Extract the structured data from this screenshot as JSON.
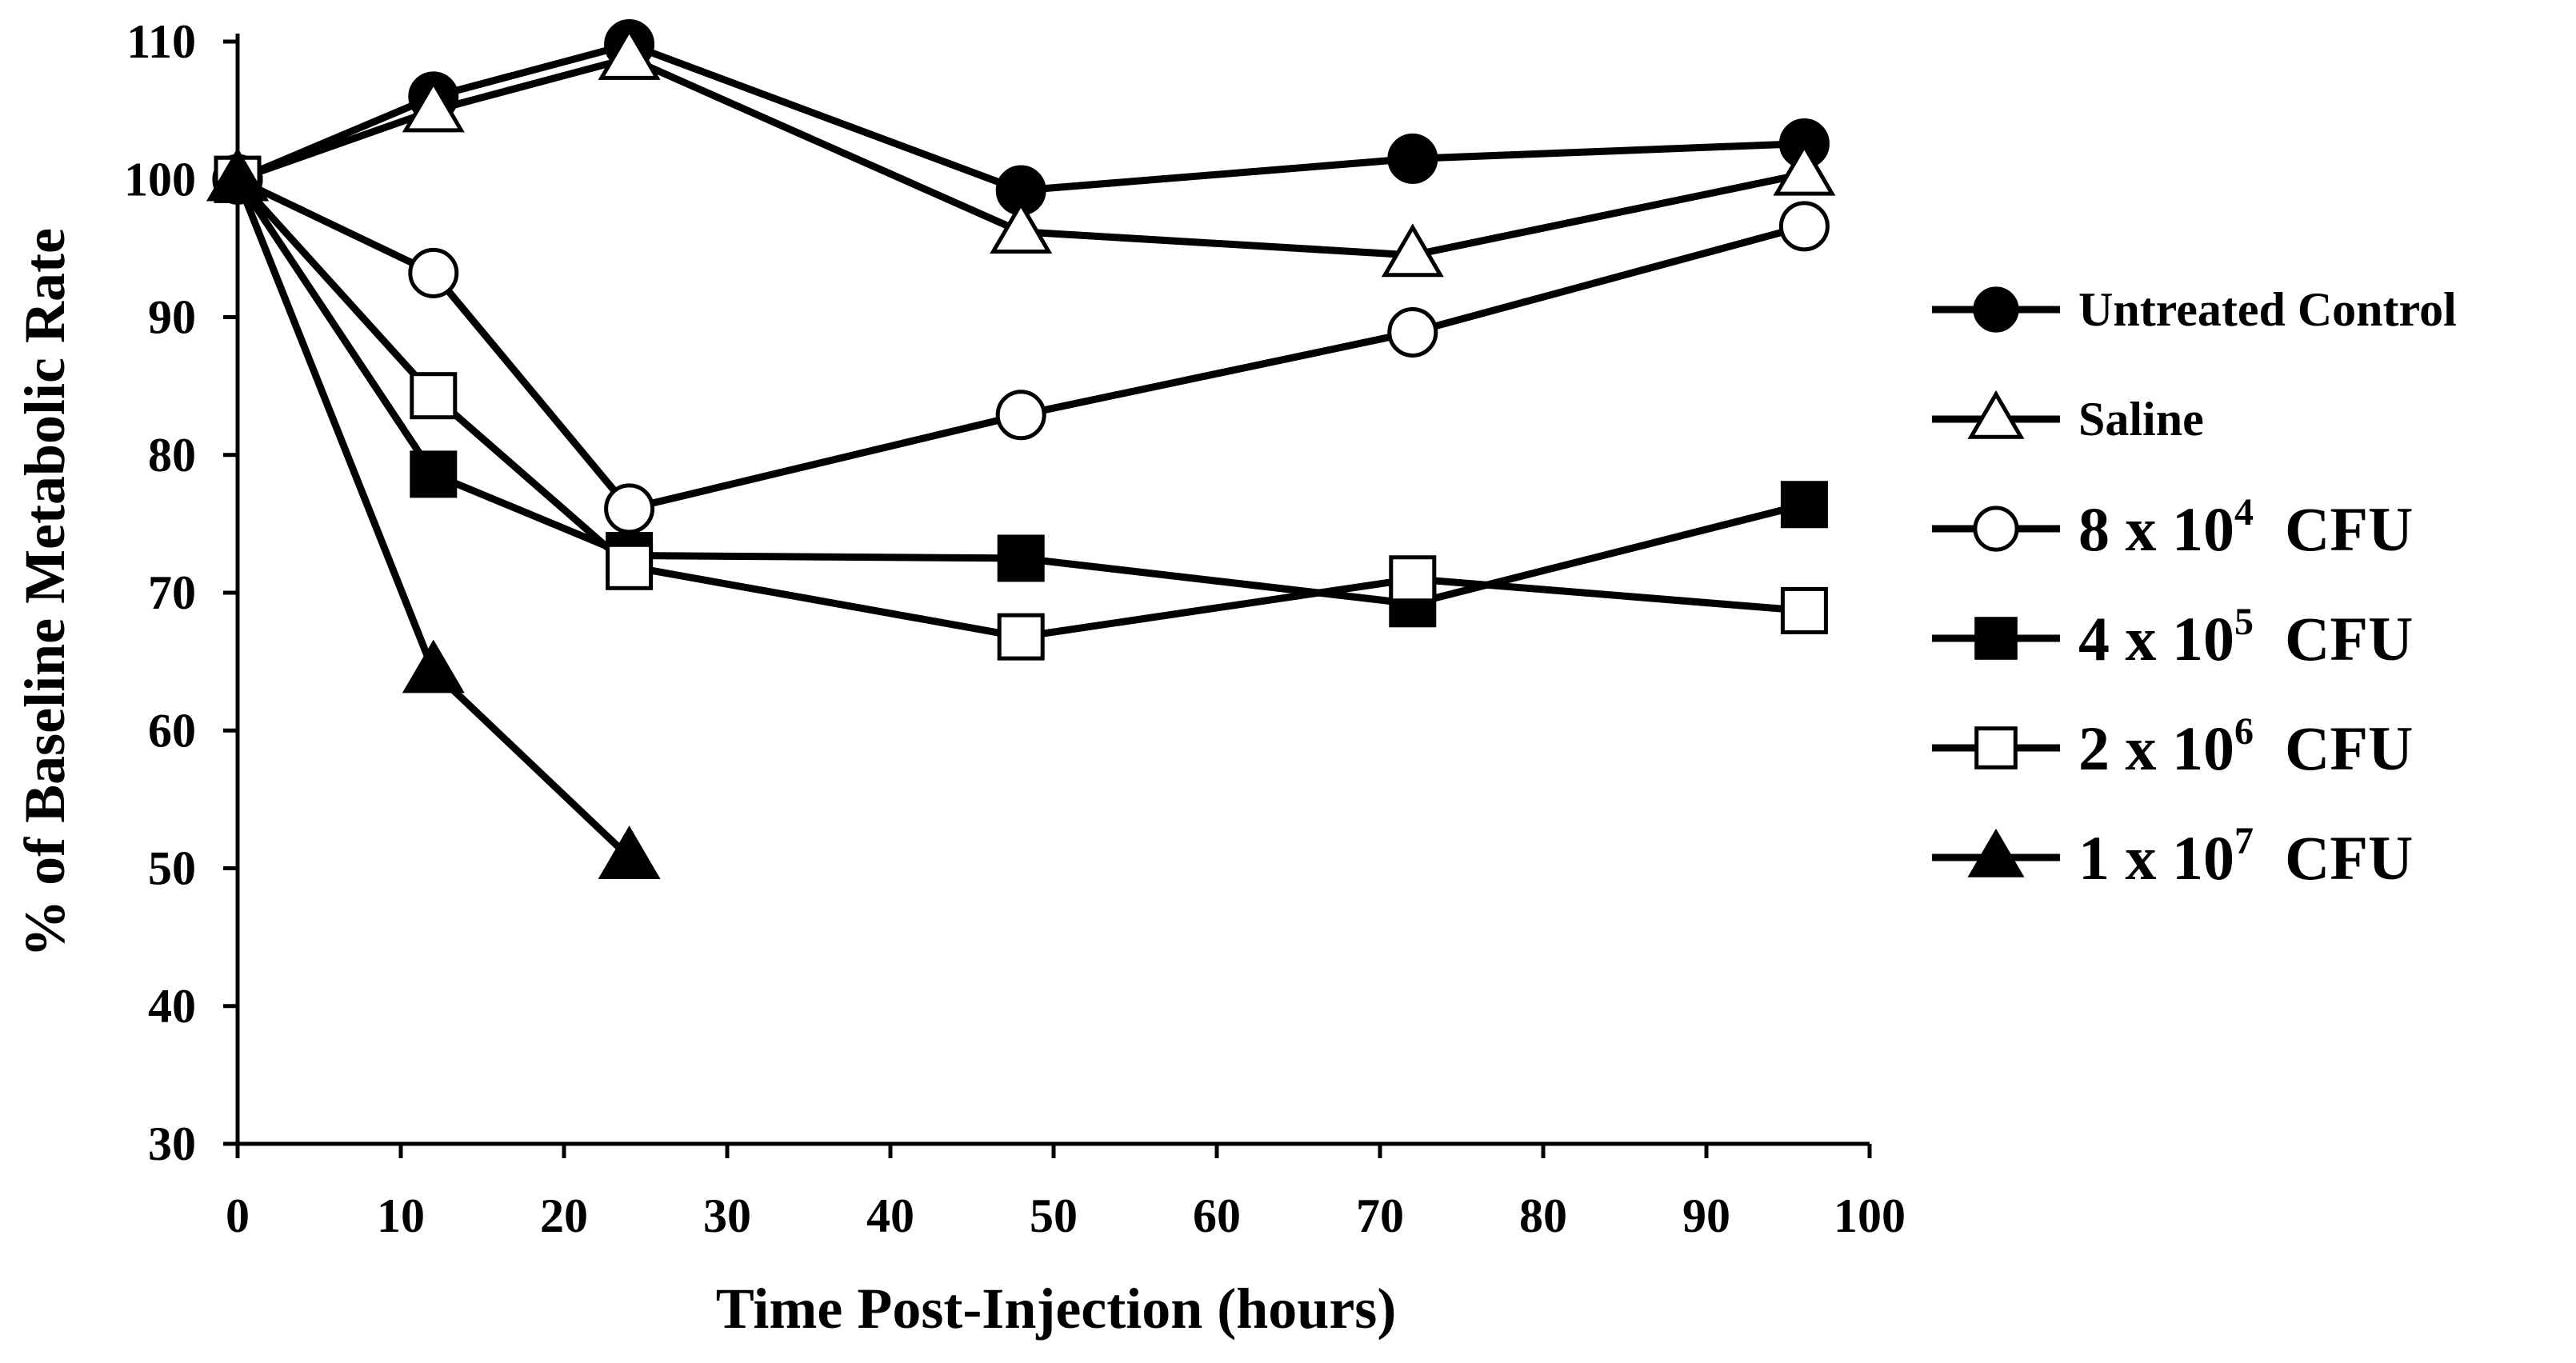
{
  "chart_data": {
    "type": "line",
    "title": "",
    "xlabel": "Time Post-Injection (hours)",
    "ylabel": "% of Baseline Metabolic Rate",
    "xlim": [
      0,
      100
    ],
    "ylim": [
      30,
      110
    ],
    "xticks": [
      0,
      10,
      20,
      30,
      40,
      50,
      60,
      70,
      80,
      90,
      100
    ],
    "yticks": [
      30,
      40,
      50,
      60,
      70,
      80,
      90,
      100,
      110
    ],
    "grid": false,
    "legend_position": "right",
    "series": [
      {
        "name": "Untreated Control",
        "marker": "circle",
        "filled": true,
        "x": [
          0,
          12,
          24,
          48,
          72,
          96
        ],
        "y": [
          100,
          106,
          109.8,
          99.2,
          101.5,
          102.6
        ]
      },
      {
        "name": "Saline",
        "marker": "triangle",
        "filled": false,
        "x": [
          0,
          12,
          24,
          48,
          72,
          96
        ],
        "y": [
          100,
          105,
          108.8,
          96.2,
          94.5,
          100.4
        ]
      },
      {
        "name": "8 x 10^4 CFU",
        "label_base": "8 x 10",
        "label_exp": "4",
        "label_unit": "CFU",
        "marker": "circle",
        "filled": false,
        "x": [
          0,
          12,
          24,
          48,
          72,
          96
        ],
        "y": [
          100,
          93.2,
          76.1,
          82.9,
          88.9,
          96.6
        ]
      },
      {
        "name": "4 x 10^5 CFU",
        "label_base": "4 x 10",
        "label_exp": "5",
        "label_unit": "CFU",
        "marker": "square",
        "filled": true,
        "x": [
          0,
          12,
          24,
          48,
          72,
          96
        ],
        "y": [
          100,
          78.6,
          72.7,
          72.5,
          69.2,
          76.4
        ]
      },
      {
        "name": "2 x 10^6 CFU",
        "label_base": "2 x 10",
        "label_exp": "6",
        "label_unit": "CFU",
        "marker": "square",
        "filled": false,
        "x": [
          0,
          12,
          24,
          48,
          72,
          96
        ],
        "y": [
          100,
          84.3,
          71.9,
          66.8,
          71.0,
          68.7
        ]
      },
      {
        "name": "1 x 10^7 CFU",
        "label_base": "1 x 10",
        "label_exp": "7",
        "label_unit": "CFU",
        "marker": "triangle",
        "filled": true,
        "x": [
          0,
          12,
          24
        ],
        "y": [
          100,
          64.3,
          50.8
        ]
      }
    ]
  }
}
